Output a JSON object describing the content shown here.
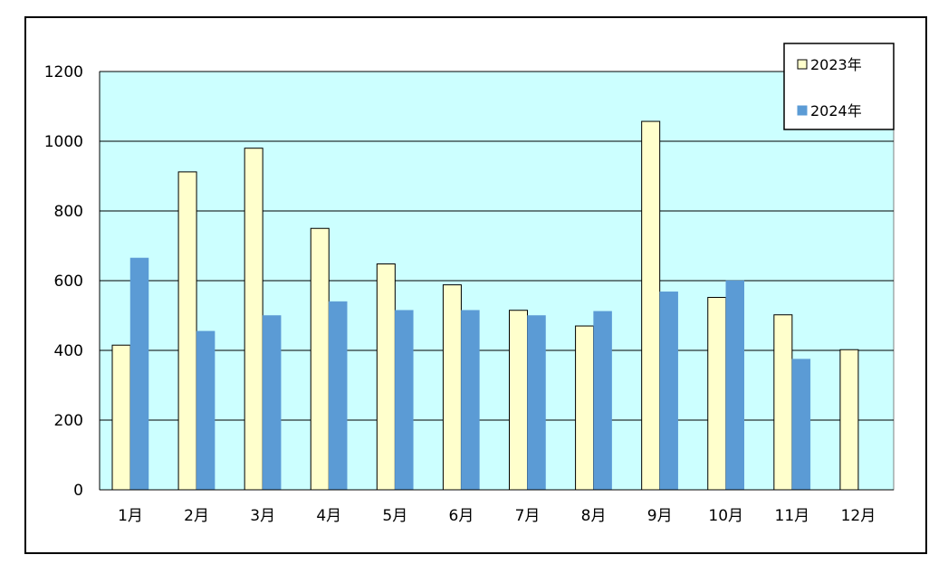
{
  "chart_data": {
    "type": "bar",
    "title": "",
    "xlabel": "",
    "ylabel": "",
    "categories": [
      "1月",
      "2月",
      "3月",
      "4月",
      "5月",
      "6月",
      "7月",
      "8月",
      "9月",
      "10月",
      "11月",
      "12月"
    ],
    "series": [
      {
        "name": "2023年",
        "color": "#FFFFCC",
        "values": [
          415,
          912,
          980,
          750,
          648,
          588,
          515,
          470,
          1057,
          552,
          502,
          402
        ]
      },
      {
        "name": "2024年",
        "color": "#5B9BD5",
        "values": [
          665,
          455,
          500,
          540,
          515,
          515,
          500,
          512,
          568,
          600,
          375,
          null
        ]
      }
    ],
    "yticks": [
      "0",
      "200",
      "400",
      "600",
      "800",
      "1000",
      "1200"
    ],
    "ylim": [
      0,
      1200
    ],
    "grid": true,
    "legend_position": "top-right",
    "plot_background": "#CCFFFF",
    "gridline_color": "#000000"
  }
}
